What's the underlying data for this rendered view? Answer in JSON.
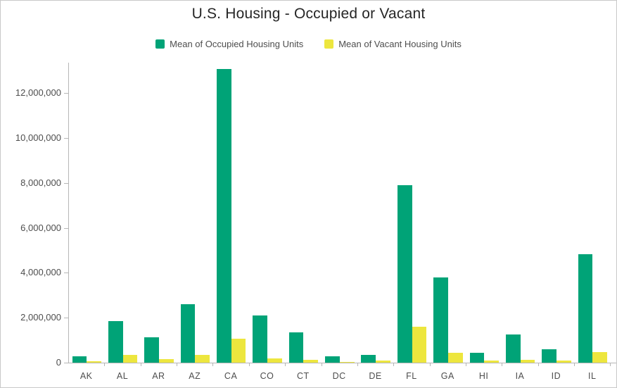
{
  "title": "U.S. Housing - Occupied or Vacant",
  "legend": {
    "items": [
      {
        "label": "Mean of Occupied Housing Units",
        "color": "#00A377"
      },
      {
        "label": "Mean of Vacant Housing Units",
        "color": "#EDE63E"
      }
    ]
  },
  "colors": {
    "occupied": "#00A377",
    "vacant": "#EDE63E",
    "axis": "#b6b6b6",
    "tick_label": "#4d4d4d",
    "title_text": "#262626",
    "panel_border": "#c9c9c9"
  },
  "chart_data": {
    "type": "bar",
    "title": "U.S. Housing - Occupied or Vacant",
    "categories": [
      "AK",
      "AL",
      "AR",
      "AZ",
      "CA",
      "CO",
      "CT",
      "DC",
      "DE",
      "FL",
      "GA",
      "HI",
      "IA",
      "ID",
      "IL"
    ],
    "series": [
      {
        "name": "Mean of Occupied Housing Units",
        "color": "#00A377",
        "values": [
          270000,
          1840000,
          1140000,
          2590000,
          13070000,
          2090000,
          1350000,
          270000,
          340000,
          7900000,
          3800000,
          440000,
          1240000,
          610000,
          4830000
        ]
      },
      {
        "name": "Mean of Vacant Housing Units",
        "color": "#EDE63E",
        "values": [
          70000,
          340000,
          160000,
          360000,
          1070000,
          190000,
          110000,
          30000,
          90000,
          1600000,
          450000,
          80000,
          120000,
          80000,
          470000
        ]
      }
    ],
    "xlabel": "",
    "ylabel": "",
    "ylim": [
      0,
      13350000
    ],
    "yticks": [
      0,
      2000000,
      4000000,
      6000000,
      8000000,
      10000000,
      12000000
    ],
    "ytick_labels": [
      "0",
      "2,000,000",
      "4,000,000",
      "6,000,000",
      "8,000,000",
      "10,000,000",
      "12,000,000"
    ],
    "grid": false,
    "legend_position": "top"
  }
}
